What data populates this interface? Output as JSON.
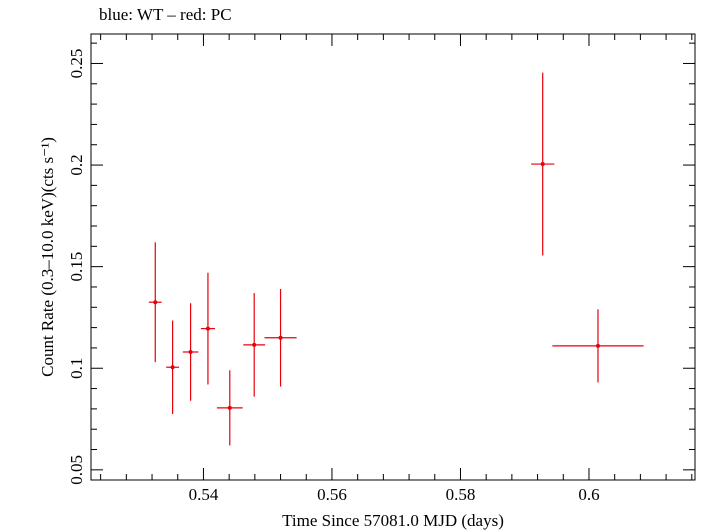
{
  "chart_data": {
    "type": "scatter",
    "title": "blue: WT – red: PC",
    "xlabel": "Time Since 57081.0 MJD (days)",
    "ylabel": "Count Rate (0.3–10.0 keV)(cts s⁻¹)",
    "xlim": [
      0.5225,
      0.6165
    ],
    "ylim": [
      0.045,
      0.2645
    ],
    "x_ticks": [
      0.54,
      0.56,
      0.58,
      0.6
    ],
    "x_tick_labels": [
      "0.54",
      "0.56",
      "0.58",
      "0.6"
    ],
    "y_ticks": [
      0.05,
      0.1,
      0.15,
      0.2,
      0.25
    ],
    "y_tick_labels": [
      "0.05",
      "0.1",
      "0.15",
      "0.2",
      "0.25"
    ],
    "grid": false,
    "legend": "none",
    "series": [
      {
        "name": "PC",
        "color": "#e8000b",
        "points": [
          {
            "x": 0.5325,
            "y": 0.1325,
            "xerr": 0.001,
            "yerr_low": 0.0295,
            "yerr_high": 0.0295
          },
          {
            "x": 0.5352,
            "y": 0.1005,
            "xerr": 0.001,
            "yerr_low": 0.023,
            "yerr_high": 0.023
          },
          {
            "x": 0.538,
            "y": 0.108,
            "xerr": 0.0012,
            "yerr_low": 0.024,
            "yerr_high": 0.024
          },
          {
            "x": 0.5407,
            "y": 0.1195,
            "xerr": 0.0011,
            "yerr_low": 0.0275,
            "yerr_high": 0.0275
          },
          {
            "x": 0.5441,
            "y": 0.0805,
            "xerr": 0.002,
            "yerr_low": 0.0185,
            "yerr_high": 0.0185
          },
          {
            "x": 0.5479,
            "y": 0.1115,
            "xerr": 0.0017,
            "yerr_low": 0.0255,
            "yerr_high": 0.0255
          },
          {
            "x": 0.552,
            "y": 0.115,
            "xerr": 0.0025,
            "yerr_low": 0.024,
            "yerr_high": 0.024
          },
          {
            "x": 0.5928,
            "y": 0.2005,
            "xerr": 0.0018,
            "yerr_low": 0.045,
            "yerr_high": 0.045
          },
          {
            "x": 0.6014,
            "y": 0.111,
            "xerr": 0.0071,
            "yerr_low": 0.018,
            "yerr_high": 0.018
          }
        ]
      }
    ]
  }
}
